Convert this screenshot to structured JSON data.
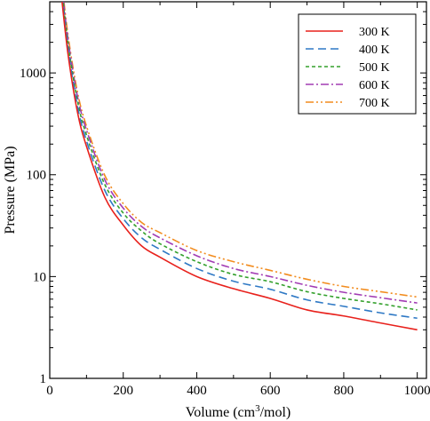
{
  "chart_data": {
    "type": "line",
    "xlabel_prefix": "Volume (cm",
    "xlabel_sup": "3",
    "xlabel_suffix": "/mol)",
    "ylabel": "Pressure (MPa)",
    "xlim": [
      0,
      1025
    ],
    "ylim": [
      1,
      5000
    ],
    "yscale": "log",
    "grid": false,
    "legend_position": "top-right",
    "x_ticks": [
      0,
      200,
      400,
      600,
      800,
      1000
    ],
    "x_tick_labels": [
      "0",
      "200",
      "400",
      "600",
      "800",
      "1000"
    ],
    "y_ticks": [
      1,
      10,
      100,
      1000
    ],
    "y_tick_labels": [
      "1",
      "10",
      "100",
      "1000"
    ],
    "series": [
      {
        "name": "300 K",
        "color": "#e8211c",
        "dash": "solid",
        "points": [
          [
            33,
            5200
          ],
          [
            50,
            1500
          ],
          [
            75,
            420
          ],
          [
            100,
            190
          ],
          [
            150,
            60
          ],
          [
            200,
            32
          ],
          [
            250,
            20
          ],
          [
            300,
            15.5
          ],
          [
            400,
            10
          ],
          [
            500,
            7.6
          ],
          [
            600,
            6.1
          ],
          [
            700,
            4.7
          ],
          [
            800,
            4.1
          ],
          [
            900,
            3.5
          ],
          [
            1000,
            3.0
          ]
        ]
      },
      {
        "name": "400 K",
        "color": "#2f79c5",
        "dash": "long-dash",
        "points": [
          [
            33,
            5800
          ],
          [
            50,
            1700
          ],
          [
            75,
            480
          ],
          [
            100,
            215
          ],
          [
            150,
            70
          ],
          [
            200,
            37
          ],
          [
            250,
            24
          ],
          [
            300,
            18.5
          ],
          [
            400,
            12
          ],
          [
            500,
            9.0
          ],
          [
            600,
            7.5
          ],
          [
            700,
            5.9
          ],
          [
            800,
            5.1
          ],
          [
            900,
            4.4
          ],
          [
            1000,
            3.9
          ]
        ]
      },
      {
        "name": "500 K",
        "color": "#33a02c",
        "dash": "short-dash",
        "points": [
          [
            33,
            6400
          ],
          [
            50,
            1900
          ],
          [
            75,
            540
          ],
          [
            100,
            245
          ],
          [
            150,
            80
          ],
          [
            200,
            42
          ],
          [
            250,
            28
          ],
          [
            300,
            21
          ],
          [
            400,
            14
          ],
          [
            500,
            10.5
          ],
          [
            600,
            8.9
          ],
          [
            700,
            7.1
          ],
          [
            800,
            6.1
          ],
          [
            900,
            5.4
          ],
          [
            1000,
            4.7
          ]
        ]
      },
      {
        "name": "600 K",
        "color": "#a23cb4",
        "dash": "dash-dot",
        "points": [
          [
            33,
            7000
          ],
          [
            50,
            2100
          ],
          [
            75,
            600
          ],
          [
            100,
            275
          ],
          [
            150,
            89
          ],
          [
            200,
            47
          ],
          [
            250,
            31
          ],
          [
            300,
            24
          ],
          [
            400,
            16
          ],
          [
            500,
            12
          ],
          [
            600,
            10
          ],
          [
            700,
            8.2
          ],
          [
            800,
            7.0
          ],
          [
            900,
            6.2
          ],
          [
            1000,
            5.5
          ]
        ]
      },
      {
        "name": "700 K",
        "color": "#f28c1e",
        "dash": "dash-dot-dot",
        "points": [
          [
            33,
            7600
          ],
          [
            50,
            2300
          ],
          [
            75,
            660
          ],
          [
            100,
            300
          ],
          [
            150,
            98
          ],
          [
            200,
            52
          ],
          [
            250,
            34
          ],
          [
            300,
            27
          ],
          [
            400,
            18
          ],
          [
            500,
            14
          ],
          [
            600,
            11.5
          ],
          [
            700,
            9.4
          ],
          [
            800,
            8.0
          ],
          [
            900,
            7.1
          ],
          [
            1000,
            6.3
          ]
        ]
      }
    ]
  }
}
